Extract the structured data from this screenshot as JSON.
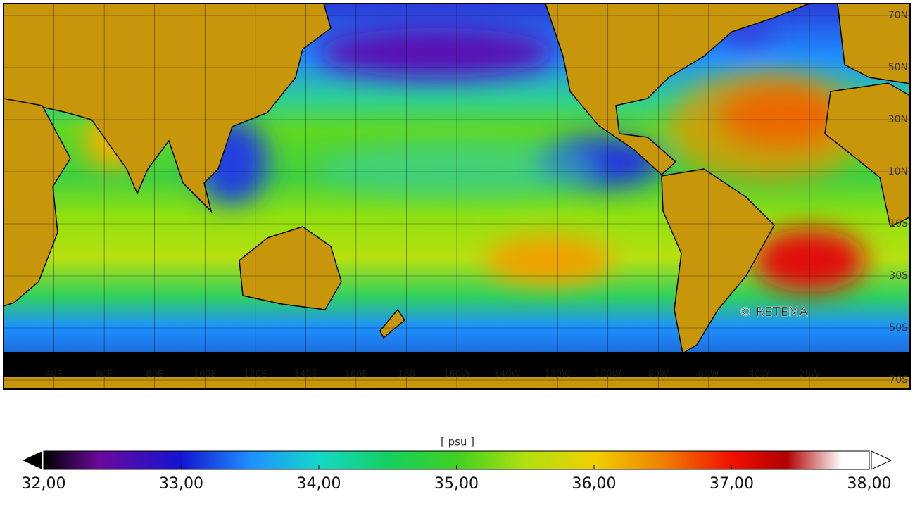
{
  "map": {
    "lat_labels": [
      "70N",
      "50N",
      "30N",
      "10N",
      "10S",
      "30S",
      "50S",
      "70S"
    ],
    "lat_values": [
      70,
      50,
      30,
      10,
      -10,
      -30,
      -50,
      -70
    ],
    "lon_labels": [
      "40E",
      "60E",
      "80E",
      "100E",
      "120E",
      "140E",
      "160E",
      "180",
      "160W",
      "140W",
      "120W",
      "100W",
      "80W",
      "60W",
      "40W",
      "20W"
    ],
    "lon_values": [
      40,
      60,
      80,
      100,
      120,
      140,
      160,
      180,
      200,
      220,
      240,
      260,
      280,
      300,
      320,
      340
    ],
    "watermark": "© RETEMA"
  },
  "colorbar": {
    "unit": "[ psu ]",
    "lim": [
      32,
      38
    ],
    "ticks": [
      {
        "value": 32,
        "label": "32,00"
      },
      {
        "value": 33,
        "label": "33,00"
      },
      {
        "value": 34,
        "label": "34,00"
      },
      {
        "value": 35,
        "label": "35,00"
      },
      {
        "value": 36,
        "label": "36,00"
      },
      {
        "value": 37,
        "label": "37,00"
      },
      {
        "value": 38,
        "label": "38,00"
      }
    ],
    "stops": [
      [
        32,
        "#000000"
      ],
      [
        32.4,
        "#6a0a9a"
      ],
      [
        33,
        "#1414d0"
      ],
      [
        33.5,
        "#1e90ff"
      ],
      [
        34,
        "#14d8c8"
      ],
      [
        34.5,
        "#14d060"
      ],
      [
        35,
        "#40d020"
      ],
      [
        35.5,
        "#b0e010"
      ],
      [
        36,
        "#f0d000"
      ],
      [
        36.5,
        "#f08000"
      ],
      [
        37,
        "#f01000"
      ],
      [
        37.4,
        "#b00000"
      ],
      [
        37.8,
        "#ffffff"
      ],
      [
        38,
        "#ffffff"
      ]
    ]
  }
}
